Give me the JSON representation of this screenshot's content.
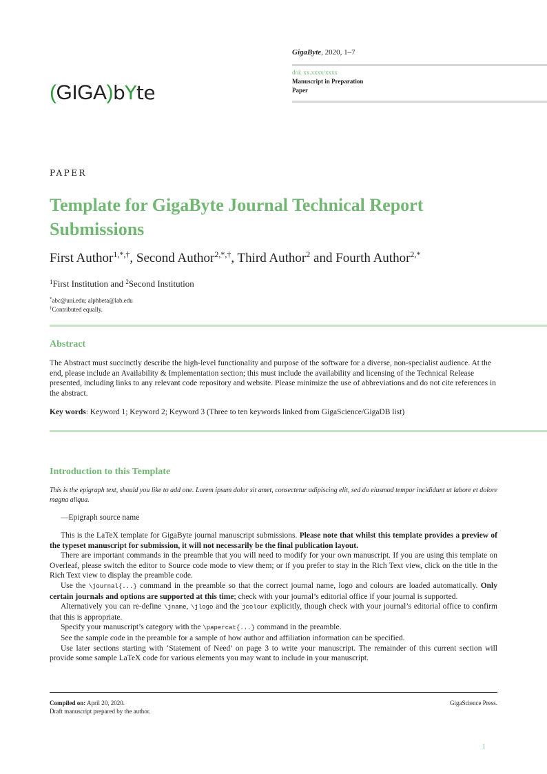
{
  "header": {
    "journal": "GigaByte",
    "citation": ", 2020, 1–7",
    "doi": "doi: xx.xxxx/xxxx",
    "status": "Manuscript in Preparation",
    "category": "Paper",
    "logo_text": "(GIGA)byte",
    "accent_color": "#72b874"
  },
  "article": {
    "kicker": "PAPER",
    "title": "Template for GigaByte Journal Technical Report Submissions",
    "authors": [
      {
        "name": "First Author",
        "marks": "1,*,†",
        "sep": ", "
      },
      {
        "name": "Second Author",
        "marks": "2,*,†",
        "sep": ", "
      },
      {
        "name": "Third Author",
        "marks": "2",
        "sep": " and "
      },
      {
        "name": "Fourth Author",
        "marks": "2,*",
        "sep": ""
      }
    ],
    "institutions": {
      "mark1": "1",
      "inst1": "First Institution",
      "and": " and ",
      "mark2": "2",
      "inst2": "Second Institution"
    },
    "notes": {
      "email_mark": "*",
      "emails": "abc@uni.edu; alphbeta@lab.edu",
      "equal_mark": "†",
      "equal": "Contributed equally."
    }
  },
  "abstract": {
    "heading": "Abstract",
    "text": "The Abstract must succinctly describe the high-level functionality and purpose of the software for a diverse, non-specialist audience. At the end, please include an Availability & Implementation section; this must include the availability and licensing of the Technical Release presented, including links to any relevant code repository and website. Please minimize the use of abbreviations and do not cite references in the abstract.",
    "keywords_label": "Key words",
    "keywords": ": Keyword 1; Keyword 2; Keyword 3 (Three to ten keywords linked from GigaScience/GigaDB list)"
  },
  "intro": {
    "heading": "Introduction to this Template",
    "epigraph": "This is the epigraph text, should you like to add one. Lorem ipsum dolor sit amet, consectetur adipiscing elit, sed do eiusmod tempor incididunt ut labore et dolore magna aliqua.",
    "epigraph_source": "—Epigraph source name",
    "p1a": "This is the LaTeX template for GigaByte journal manuscript submissions. ",
    "p1b": "Please note that whilst this template provides a preview of the typeset manuscript for submission, it will not necessarily be the final publication layout.",
    "p2": "There are important commands in the preamble that you will need to modify for your own manuscript. If you are using this template on Overleaf, please switch the editor to Source code mode to view them; or if you prefer to stay in the Rich Text view, click on the title in the Rich Text view to display the preamble code.",
    "p3a": "Use the ",
    "p3code": "\\journal{...}",
    "p3b": " command in the preamble so that the correct journal name, logo and colours are loaded automatically. ",
    "p3bold": "Only certain journals and options are supported at this time",
    "p3c": "; check with your journal’s editorial office if your journal is supported.",
    "p4a": "Alternatively you can re-define ",
    "p4code1": "\\jname",
    "p4sep": ", ",
    "p4code2": "\\jlogo",
    "p4b": " and the ",
    "p4code3": "jcolour",
    "p4c": " explicitly, though check with your journal’s editorial office to confirm that this is appropriate.",
    "p5a": "Specify your manuscript’s category with the ",
    "p5code": "\\papercat{...}",
    "p5b": " command in the preamble.",
    "p6": "See the sample code in the preamble for a sample of how author and affiliation information can be specified.",
    "p7": "Use later sections starting with ‘Statement of Need’ on page 3 to write your manuscript. The remainder of this current section will provide some sample LaTeX code for various elements you may want to include in your manuscript."
  },
  "footer": {
    "compiled_label": "Compiled on:",
    "compiled_date": " April 20, 2020.",
    "draft_note": "Draft manuscript prepared by the author.",
    "publisher": "GigaScience Press.",
    "page_number": "1"
  }
}
